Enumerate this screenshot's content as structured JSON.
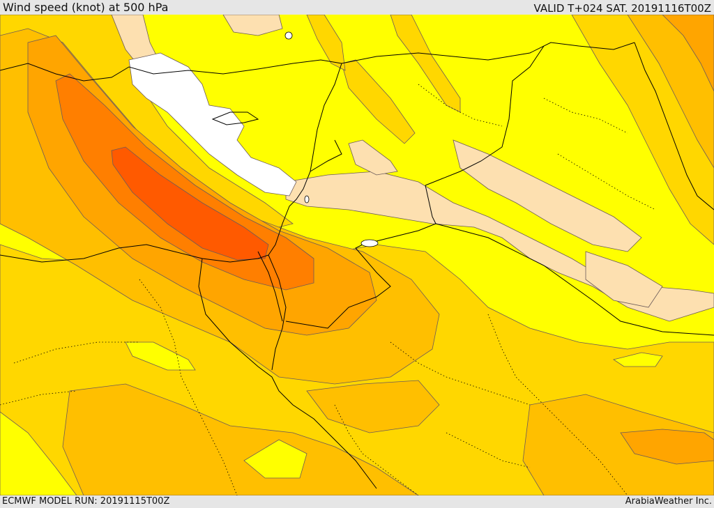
{
  "header": {
    "title": "Wind speed (knot) at 500 hPa",
    "valid_time": "VALID T+024 SAT. 20191116T00Z"
  },
  "footer": {
    "model_run": "ECMWF MODEL RUN: 20191115T00Z",
    "provider": "ArabiaWeather Inc."
  },
  "map": {
    "field": "wind speed at 500 hPa",
    "fill_colors": {
      "weakest": "#ffffff",
      "very_light": "#fde0b0",
      "light": "#ffff00",
      "moderate": "#ffd700",
      "fresh": "#ffbf00",
      "strong": "#ffa500",
      "very_strong": "#ff7f00",
      "jet_core": "#ff5a00"
    },
    "contour_color": "#6b5a5a",
    "border_color": "#000000",
    "region": "Eastern Mediterranean, Levant, Egypt, northern Arabia and Iraq"
  }
}
